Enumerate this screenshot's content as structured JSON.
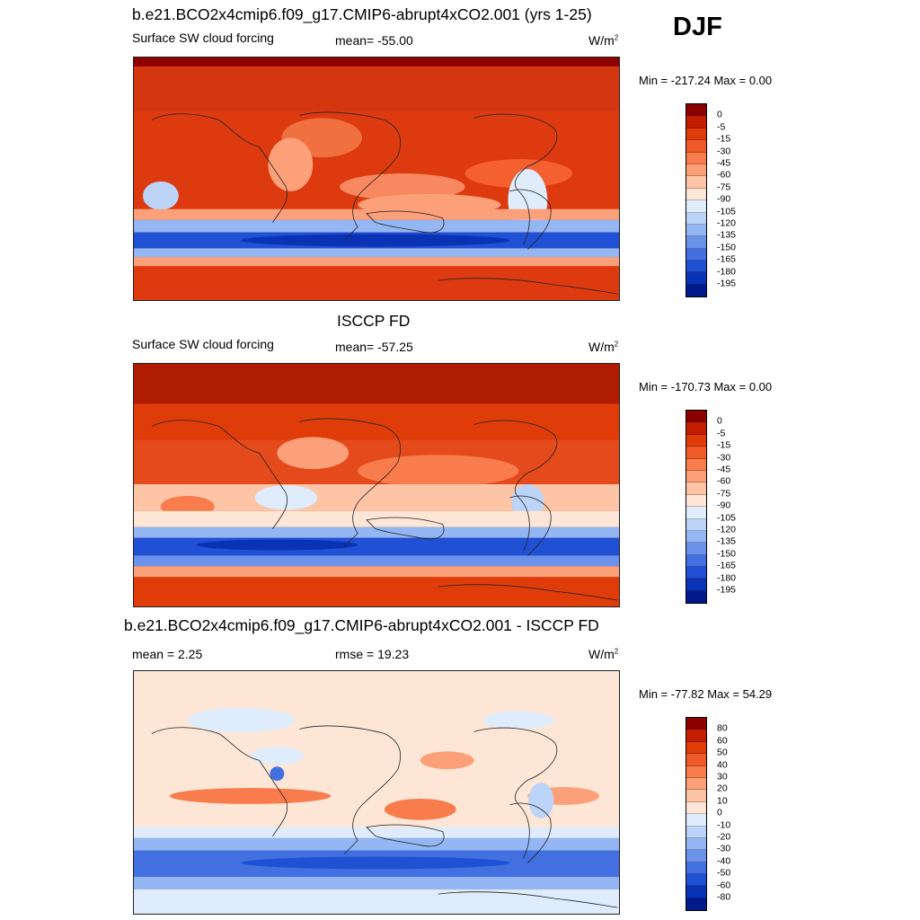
{
  "season_label": "DJF",
  "panels": [
    {
      "title": "b.e21.BCO2x4cmip6.f09_g17.CMIP6-abrupt4xCO2.001 (yrs 1-25)",
      "left_label": "Surface SW cloud forcing",
      "center_label": "mean= -55.00",
      "units_base": "W/m",
      "units_exp": "2",
      "minmax": "Min = -217.24 Max =   0.00",
      "colorbar": {
        "labels": [
          "0",
          "-5",
          "-15",
          "-30",
          "-45",
          "-60",
          "-75",
          "-90",
          "-105",
          "-120",
          "-135",
          "-150",
          "-165",
          "-180",
          "-195"
        ],
        "colors": [
          "#8c0000",
          "#c41e00",
          "#e03c0a",
          "#f05a28",
          "#f87c4c",
          "#fca07a",
          "#fdc4a6",
          "#fde6d6",
          "#dfecfb",
          "#bcd4f8",
          "#94b6f2",
          "#6a92ea",
          "#4370e0",
          "#2050d4",
          "#0a32b4",
          "#001a8c"
        ]
      }
    },
    {
      "title": "ISCCP FD",
      "left_label": "Surface SW cloud forcing",
      "center_label": "mean= -57.25",
      "units_base": "W/m",
      "units_exp": "2",
      "minmax": "Min = -170.73 Max =   0.00",
      "colorbar": {
        "labels": [
          "0",
          "-5",
          "-15",
          "-30",
          "-45",
          "-60",
          "-75",
          "-90",
          "-105",
          "-120",
          "-135",
          "-150",
          "-165",
          "-180",
          "-195"
        ],
        "colors": [
          "#8c0000",
          "#c41e00",
          "#e03c0a",
          "#f05a28",
          "#f87c4c",
          "#fca07a",
          "#fdc4a6",
          "#fde6d6",
          "#dfecfb",
          "#bcd4f8",
          "#94b6f2",
          "#6a92ea",
          "#4370e0",
          "#2050d4",
          "#0a32b4",
          "#001a8c"
        ]
      }
    },
    {
      "title": "b.e21.BCO2x4cmip6.f09_g17.CMIP6-abrupt4xCO2.001 - ISCCP FD",
      "left_label": "mean =   2.25",
      "center_label": "rmse =  19.23",
      "units_base": "W/m",
      "units_exp": "2",
      "minmax": "Min = -77.82 Max =  54.29",
      "colorbar": {
        "labels": [
          "80",
          "60",
          "50",
          "40",
          "30",
          "20",
          "10",
          "0",
          "-10",
          "-20",
          "-30",
          "-40",
          "-50",
          "-60",
          "-80"
        ],
        "colors": [
          "#8c0000",
          "#c41e00",
          "#e03c0a",
          "#f05a28",
          "#f87c4c",
          "#fca07a",
          "#fdc4a6",
          "#fde6d6",
          "#dfecfb",
          "#bcd4f8",
          "#94b6f2",
          "#6a92ea",
          "#4370e0",
          "#2050d4",
          "#0a32b4",
          "#001a8c"
        ]
      }
    }
  ]
}
